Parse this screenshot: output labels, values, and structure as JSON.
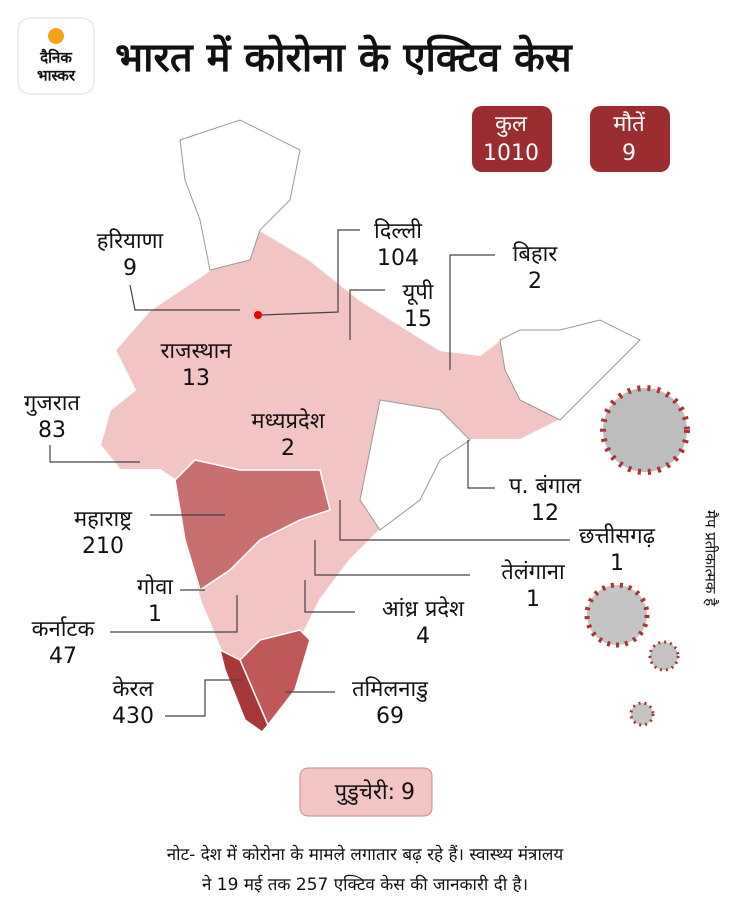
{
  "header": {
    "logo": [
      "दैनिक",
      "भास्कर"
    ],
    "title": "भारत में कोरोना के एक्टिव केस"
  },
  "totals": [
    {
      "label": "कुल",
      "value": 1010
    },
    {
      "label": "मौतें",
      "value": 9
    }
  ],
  "states": [
    {
      "name": "हरियाणा",
      "value": 9
    },
    {
      "name": "दिल्ली",
      "value": 104
    },
    {
      "name": "बिहार",
      "value": 2
    },
    {
      "name": "यूपी",
      "value": 15
    },
    {
      "name": "राजस्थान",
      "value": 13
    },
    {
      "name": "गुजरात",
      "value": 83
    },
    {
      "name": "मध्यप्रदेश",
      "value": 2
    },
    {
      "name": "प. बंगाल",
      "value": 12
    },
    {
      "name": "महाराष्ट्र",
      "value": 210
    },
    {
      "name": "छत्तीसगढ़",
      "value": 1
    },
    {
      "name": "तेलंगाना",
      "value": 1
    },
    {
      "name": "गोवा",
      "value": 1
    },
    {
      "name": "आंध्र प्रदेश",
      "value": 4
    },
    {
      "name": "कर्नाटक",
      "value": 47
    },
    {
      "name": "केरल",
      "value": 430
    },
    {
      "name": "तमिलनाडु",
      "value": 69
    }
  ],
  "puducherry": {
    "label": "पुडुचेरी:",
    "value": 9
  },
  "map_note": "मैप प्रतीकात्मक है",
  "note": [
    "नोट- देश में कोरोना के मामले लगातार बढ़ रहे हैं। स्वास्थ्य मंत्रालय",
    "ने 19 मई तक 257 एक्टिव केस की जानकारी दी है।"
  ]
}
